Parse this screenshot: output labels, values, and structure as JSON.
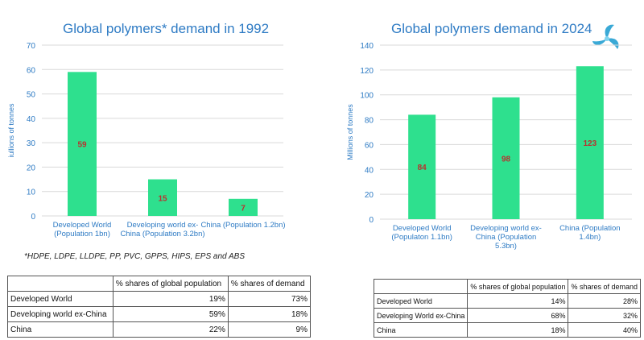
{
  "chart_data": [
    {
      "type": "bar",
      "title": "Global polymers* demand in 1992",
      "ylabel": "iullions of tonnes",
      "ylim": [
        0,
        70
      ],
      "yticks": [
        0,
        10,
        20,
        30,
        40,
        50,
        60,
        70
      ],
      "categories": [
        [
          "Developed World",
          "(Population 1bn)"
        ],
        [
          "Developing world ex-",
          "China (Population 3.2bn)"
        ],
        [
          "China (Population 1.2bn)"
        ]
      ],
      "values": [
        59,
        15,
        7
      ],
      "data_labels": [
        "59",
        "15",
        "7"
      ],
      "grid": true,
      "bar_color": "#2ee08e",
      "label_color": "#b8312f"
    },
    {
      "type": "bar",
      "title": "Global polymers demand in 2024",
      "ylabel": "Millions of tonnes",
      "ylim": [
        0,
        140
      ],
      "yticks": [
        0,
        20,
        40,
        60,
        80,
        100,
        120,
        140
      ],
      "categories": [
        [
          "Developed World",
          "(Populaton 1.1bn)"
        ],
        [
          "Developing world ex-",
          "China (Population",
          "5.3bn)"
        ],
        [
          "China (Population",
          "1.4bn)"
        ]
      ],
      "values": [
        84,
        98,
        123
      ],
      "data_labels": [
        "84",
        "98",
        "123"
      ],
      "grid": true,
      "bar_color": "#2ee08e",
      "label_color": "#b8312f"
    }
  ],
  "footnote": "*HDPE, LDPE, LLDPE, PP, PVC, GPPS, HIPS, EPS and ABS",
  "table_1992": {
    "headers": [
      "",
      "% shares of global population",
      "% shares of demand"
    ],
    "rows": [
      [
        "Developed World",
        "19%",
        "73%"
      ],
      [
        "Developing world ex-China",
        "59%",
        "18%"
      ],
      [
        "China",
        "22%",
        "9%"
      ]
    ]
  },
  "table_2024": {
    "headers": [
      "",
      "% shares of global population",
      "% shares of demand"
    ],
    "rows": [
      [
        "Developed World",
        "14%",
        "28%"
      ],
      [
        "Developing World ex-China",
        "68%",
        "32%"
      ],
      [
        "China",
        "18%",
        "40%"
      ]
    ]
  },
  "colors": {
    "title": "#2e7bc4",
    "axis_text": "#2e7bc4",
    "grid": "#d9d9d9",
    "logo": "#3aa9d6"
  },
  "logo_icon": "swirl-logo-icon"
}
